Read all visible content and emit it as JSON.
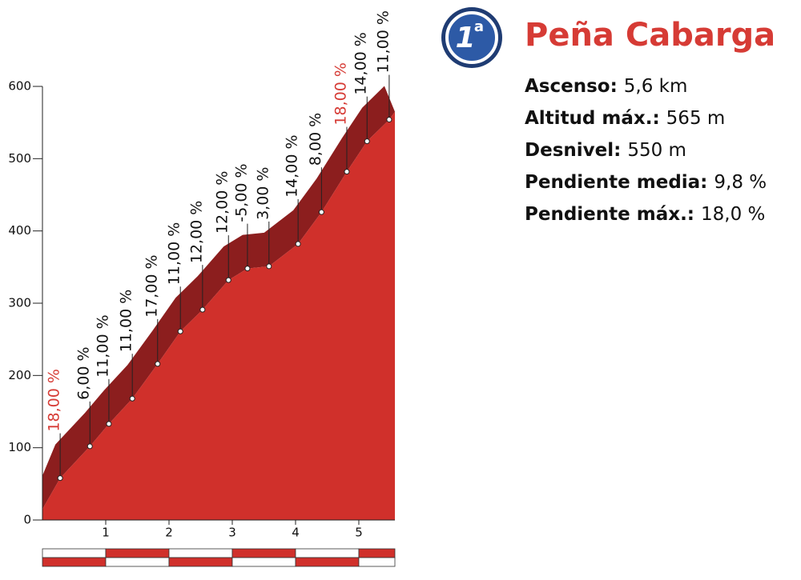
{
  "chart_data": {
    "type": "area",
    "title": "Peña Cabarga",
    "badge": "1",
    "badge_sup": "a",
    "info": [
      {
        "label": "Ascenso:",
        "value": "5,6 km"
      },
      {
        "label": "Altitud máx.:",
        "value": "565 m"
      },
      {
        "label": "Desnivel:",
        "value": "550 m"
      },
      {
        "label": "Pendiente media:",
        "value": "9,8 %"
      },
      {
        "label": "Pendiente máx.:",
        "value": "18,0 %"
      }
    ],
    "x": [
      0,
      0.28,
      0.75,
      1.05,
      1.42,
      1.82,
      2.18,
      2.53,
      2.94,
      3.24,
      3.58,
      4.04,
      4.41,
      4.81,
      5.13,
      5.48,
      5.57
    ],
    "values": [
      15,
      58,
      102,
      133,
      168,
      216,
      261,
      291,
      332,
      348,
      351,
      382,
      426,
      482,
      524,
      554,
      565
    ],
    "labels": [
      null,
      "18,00 %",
      "6,00 %",
      "11,00 %",
      "11,00 %",
      "17,00 %",
      "11,00 %",
      "12,00 %",
      "12,00 %",
      "-5,00 %",
      "3,00 %",
      "14,00 %",
      "8,00 %",
      "18,00 %",
      "14,00 %",
      "11,00 %",
      null
    ],
    "label_colors": [
      null,
      "#d63b35",
      "#111111",
      "#111111",
      "#111111",
      "#111111",
      "#111111",
      "#111111",
      "#111111",
      "#111111",
      "#111111",
      "#111111",
      "#111111",
      "#d63b35",
      "#111111",
      "#111111",
      null
    ],
    "color": "#d0302b",
    "shade_color": "#8c1e1e",
    "xlim": [
      0,
      5.57
    ],
    "xticks": [
      1,
      2,
      3,
      4,
      5
    ],
    "ylim": [
      0,
      600
    ],
    "yticks": [
      0,
      100,
      200,
      300,
      400,
      500,
      600
    ]
  }
}
